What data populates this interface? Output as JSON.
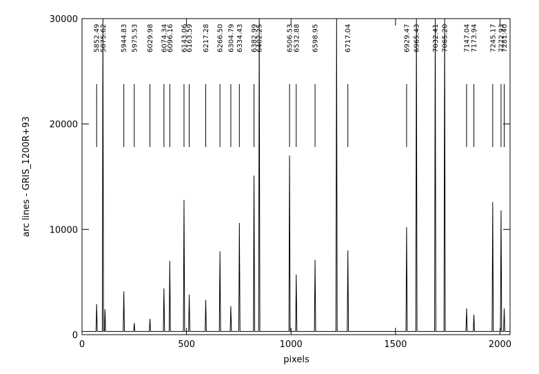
{
  "chart_data": {
    "type": "line",
    "xlabel": "pixels",
    "ylabel": "arc lines - GRIS_1200R+93",
    "xlim": [
      0,
      2048
    ],
    "ylim": [
      0,
      30000
    ],
    "xticks": [
      0,
      500,
      1000,
      1500,
      2000
    ],
    "yticks": [
      0,
      10000,
      20000,
      30000
    ],
    "series": [
      {
        "color": "#000000",
        "x": [
          0,
          67,
          70,
          73,
          97,
          100,
          103,
          107,
          110,
          113,
          197,
          200,
          203,
          247,
          250,
          253,
          322,
          325,
          328,
          389,
          392,
          395,
          417,
          420,
          423,
          485,
          488,
          491,
          510,
          513,
          516,
          589,
          592,
          595,
          657,
          660,
          663,
          709,
          712,
          715,
          750,
          753,
          756,
          820,
          823,
          826,
          845,
          848,
          851,
          990,
          993,
          996,
          1022,
          1025,
          1028,
          1112,
          1115,
          1118,
          1215,
          1218,
          1221,
          1269,
          1272,
          1275,
          1550,
          1553,
          1556,
          1597,
          1600,
          1603,
          1687,
          1690,
          1693,
          1732,
          1735,
          1738,
          1837,
          1840,
          1843,
          1872,
          1875,
          1878,
          1962,
          1965,
          1968,
          2002,
          2005,
          2008,
          2017,
          2020,
          2023,
          2048
        ],
        "values": [
          300,
          300,
          2900,
          300,
          300,
          30000,
          300,
          300,
          2400,
          300,
          300,
          4100,
          300,
          300,
          1100,
          300,
          300,
          1500,
          300,
          300,
          4400,
          300,
          300,
          7000,
          300,
          300,
          12800,
          300,
          300,
          3800,
          300,
          300,
          3300,
          300,
          300,
          7900,
          300,
          300,
          2700,
          300,
          300,
          10600,
          300,
          300,
          15100,
          300,
          300,
          30000,
          300,
          300,
          17000,
          300,
          300,
          5700,
          300,
          300,
          7100,
          300,
          300,
          30000,
          300,
          300,
          8000,
          300,
          300,
          10200,
          300,
          300,
          30000,
          300,
          300,
          30000,
          300,
          300,
          30000,
          300,
          300,
          2500,
          300,
          300,
          1900,
          300,
          300,
          12600,
          300,
          300,
          11800,
          300,
          300,
          2500,
          300,
          300
        ]
      }
    ],
    "annotations": [
      {
        "x": 70,
        "label": "5852.49"
      },
      {
        "x": 100,
        "label": "5875.62"
      },
      {
        "x": 200,
        "label": "5944.83"
      },
      {
        "x": 250,
        "label": "5975.53"
      },
      {
        "x": 325,
        "label": "6029.98"
      },
      {
        "x": 392,
        "label": "6074.34"
      },
      {
        "x": 420,
        "label": "6096.16"
      },
      {
        "x": 488,
        "label": "6143.06"
      },
      {
        "x": 513,
        "label": "6163.59"
      },
      {
        "x": 592,
        "label": "6217.28"
      },
      {
        "x": 660,
        "label": "6266.50"
      },
      {
        "x": 712,
        "label": "6304.79"
      },
      {
        "x": 753,
        "label": "6334.43"
      },
      {
        "x": 823,
        "label": "6382.99"
      },
      {
        "x": 848,
        "label": "6402.25"
      },
      {
        "x": 993,
        "label": "6506.53"
      },
      {
        "x": 1025,
        "label": "6532.88"
      },
      {
        "x": 1115,
        "label": "6598.95"
      },
      {
        "x": 1272,
        "label": "6717.04"
      },
      {
        "x": 1553,
        "label": "6929.47"
      },
      {
        "x": 1600,
        "label": "6965.43"
      },
      {
        "x": 1690,
        "label": "7032.41"
      },
      {
        "x": 1735,
        "label": "7065.20"
      },
      {
        "x": 1840,
        "label": "7147.04"
      },
      {
        "x": 1875,
        "label": "7173.94"
      },
      {
        "x": 1965,
        "label": "7245.17"
      },
      {
        "x": 2005,
        "label": "7272.93"
      },
      {
        "x": 2020,
        "label": "7281.40"
      }
    ]
  }
}
